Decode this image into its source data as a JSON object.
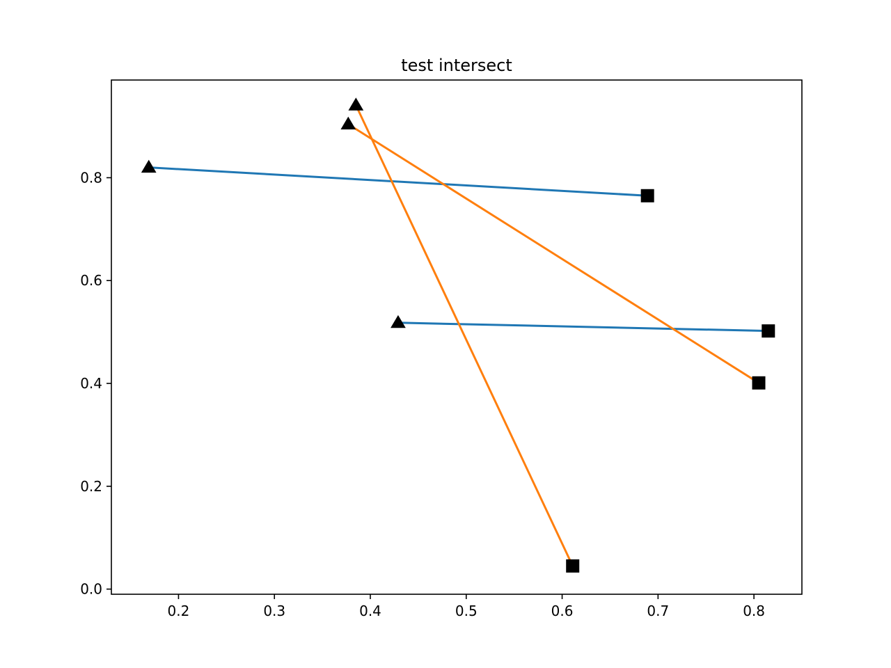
{
  "chart_data": {
    "type": "line",
    "title": "test intersect",
    "xlabel": "",
    "ylabel": "",
    "xlim": [
      0.13,
      0.85
    ],
    "ylim": [
      -0.01,
      0.99
    ],
    "x_ticks": [
      0.2,
      0.3,
      0.4,
      0.5,
      0.6,
      0.7,
      0.8
    ],
    "x_tick_labels": [
      "0.2",
      "0.3",
      "0.4",
      "0.5",
      "0.6",
      "0.7",
      "0.8"
    ],
    "y_ticks": [
      0.0,
      0.2,
      0.4,
      0.6,
      0.8
    ],
    "y_tick_labels": [
      "0.0",
      "0.2",
      "0.4",
      "0.6",
      "0.8"
    ],
    "grid": false,
    "series": [
      {
        "color": "#1f77b4",
        "segments": [
          {
            "start": [
              0.169,
              0.82
            ],
            "end": [
              0.689,
              0.765
            ]
          },
          {
            "start": [
              0.429,
              0.518
            ],
            "end": [
              0.815,
              0.502
            ]
          }
        ]
      },
      {
        "color": "#ff7f0e",
        "segments": [
          {
            "start": [
              0.385,
              0.941
            ],
            "end": [
              0.611,
              0.045
            ]
          },
          {
            "start": [
              0.377,
              0.904
            ],
            "end": [
              0.805,
              0.401
            ]
          }
        ]
      }
    ],
    "start_marker": "triangle-up",
    "end_marker": "square",
    "marker_color": "#000000"
  }
}
